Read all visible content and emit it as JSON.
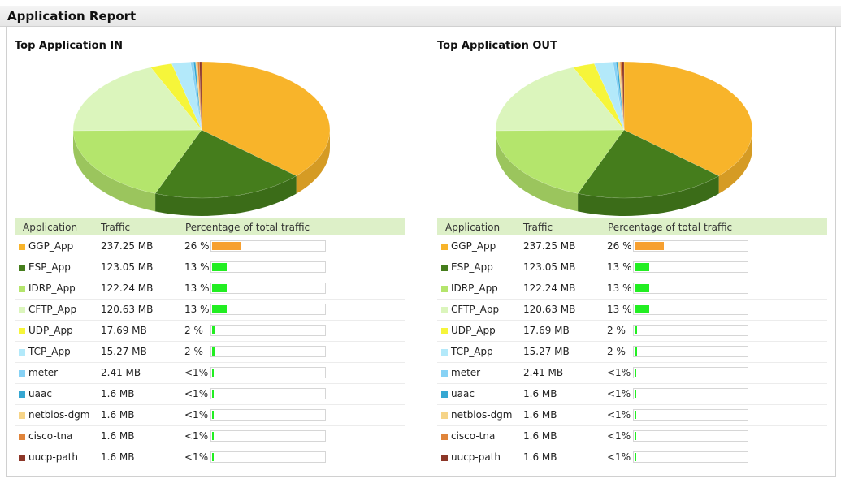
{
  "page": {
    "title": "Application Report"
  },
  "table_headers": {
    "application": "Application",
    "traffic": "Traffic",
    "percentage": "Percentage of total traffic"
  },
  "panels": [
    {
      "title": "Top Application IN",
      "rows": [
        {
          "app": "GGP_App",
          "traffic": "237.25 MB",
          "pct_label": "26 %",
          "pct": 26,
          "color": "#f8b42a",
          "bar_color": "#f7a030"
        },
        {
          "app": "ESP_App",
          "traffic": "123.05 MB",
          "pct_label": "13 %",
          "pct": 13,
          "color": "#457d1c",
          "bar_color": "#22ee22"
        },
        {
          "app": "IDRP_App",
          "traffic": "122.24 MB",
          "pct_label": "13 %",
          "pct": 13,
          "color": "#b4e56c",
          "bar_color": "#22ee22"
        },
        {
          "app": "CFTP_App",
          "traffic": "120.63 MB",
          "pct_label": "13 %",
          "pct": 13,
          "color": "#dbf5bc",
          "bar_color": "#22ee22"
        },
        {
          "app": "UDP_App",
          "traffic": "17.69 MB",
          "pct_label": "2 %",
          "pct": 2,
          "color": "#f6f53a",
          "bar_color": "#22ee22"
        },
        {
          "app": "TCP_App",
          "traffic": "15.27 MB",
          "pct_label": "2 %",
          "pct": 2,
          "color": "#b3e9fa",
          "bar_color": "#22ee22"
        },
        {
          "app": "meter",
          "traffic": "2.41 MB",
          "pct_label": "<1%",
          "pct": 0.3,
          "color": "#87d2f5",
          "bar_color": "#22ee22"
        },
        {
          "app": "uaac",
          "traffic": "1.6 MB",
          "pct_label": "<1%",
          "pct": 0.2,
          "color": "#36a7d2",
          "bar_color": "#22ee22"
        },
        {
          "app": "netbios-dgm",
          "traffic": "1.6 MB",
          "pct_label": "<1%",
          "pct": 0.2,
          "color": "#f6d488",
          "bar_color": "#22ee22"
        },
        {
          "app": "cisco-tna",
          "traffic": "1.6 MB",
          "pct_label": "<1%",
          "pct": 0.2,
          "color": "#e0843a",
          "bar_color": "#22ee22"
        },
        {
          "app": "uucp-path",
          "traffic": "1.6 MB",
          "pct_label": "<1%",
          "pct": 0.2,
          "color": "#8c3628",
          "bar_color": "#22ee22"
        }
      ]
    },
    {
      "title": "Top Application OUT",
      "rows": [
        {
          "app": "GGP_App",
          "traffic": "237.25 MB",
          "pct_label": "26 %",
          "pct": 26,
          "color": "#f8b42a",
          "bar_color": "#f7a030"
        },
        {
          "app": "ESP_App",
          "traffic": "123.05 MB",
          "pct_label": "13 %",
          "pct": 13,
          "color": "#457d1c",
          "bar_color": "#22ee22"
        },
        {
          "app": "IDRP_App",
          "traffic": "122.24 MB",
          "pct_label": "13 %",
          "pct": 13,
          "color": "#b4e56c",
          "bar_color": "#22ee22"
        },
        {
          "app": "CFTP_App",
          "traffic": "120.63 MB",
          "pct_label": "13 %",
          "pct": 13,
          "color": "#dbf5bc",
          "bar_color": "#22ee22"
        },
        {
          "app": "UDP_App",
          "traffic": "17.69 MB",
          "pct_label": "2 %",
          "pct": 2,
          "color": "#f6f53a",
          "bar_color": "#22ee22"
        },
        {
          "app": "TCP_App",
          "traffic": "15.27 MB",
          "pct_label": "2 %",
          "pct": 2,
          "color": "#b3e9fa",
          "bar_color": "#22ee22"
        },
        {
          "app": "meter",
          "traffic": "2.41 MB",
          "pct_label": "<1%",
          "pct": 0.3,
          "color": "#87d2f5",
          "bar_color": "#22ee22"
        },
        {
          "app": "uaac",
          "traffic": "1.6 MB",
          "pct_label": "<1%",
          "pct": 0.2,
          "color": "#36a7d2",
          "bar_color": "#22ee22"
        },
        {
          "app": "netbios-dgm",
          "traffic": "1.6 MB",
          "pct_label": "<1%",
          "pct": 0.2,
          "color": "#f6d488",
          "bar_color": "#22ee22"
        },
        {
          "app": "cisco-tna",
          "traffic": "1.6 MB",
          "pct_label": "<1%",
          "pct": 0.2,
          "color": "#e0843a",
          "bar_color": "#22ee22"
        },
        {
          "app": "uucp-path",
          "traffic": "1.6 MB",
          "pct_label": "<1%",
          "pct": 0.2,
          "color": "#8c3628",
          "bar_color": "#22ee22"
        }
      ]
    }
  ],
  "chart_data": [
    {
      "type": "pie",
      "title": "Top Application IN",
      "categories": [
        "GGP_App",
        "ESP_App",
        "IDRP_App",
        "CFTP_App",
        "UDP_App",
        "TCP_App",
        "meter",
        "uaac",
        "netbios-dgm",
        "cisco-tna",
        "uucp-path"
      ],
      "values": [
        237.25,
        123.05,
        122.24,
        120.63,
        17.69,
        15.27,
        2.41,
        1.6,
        1.6,
        1.6,
        1.6
      ],
      "colors": [
        "#f8b42a",
        "#457d1c",
        "#b4e56c",
        "#dbf5bc",
        "#f6f53a",
        "#b3e9fa",
        "#87d2f5",
        "#36a7d2",
        "#f6d488",
        "#e0843a",
        "#8c3628"
      ]
    },
    {
      "type": "pie",
      "title": "Top Application OUT",
      "categories": [
        "GGP_App",
        "ESP_App",
        "IDRP_App",
        "CFTP_App",
        "UDP_App",
        "TCP_App",
        "meter",
        "uaac",
        "netbios-dgm",
        "cisco-tna",
        "uucp-path"
      ],
      "values": [
        237.25,
        123.05,
        122.24,
        120.63,
        17.69,
        15.27,
        2.41,
        1.6,
        1.6,
        1.6,
        1.6
      ],
      "colors": [
        "#f8b42a",
        "#457d1c",
        "#b4e56c",
        "#dbf5bc",
        "#f6f53a",
        "#b3e9fa",
        "#87d2f5",
        "#36a7d2",
        "#f6d488",
        "#e0843a",
        "#8c3628"
      ]
    }
  ]
}
